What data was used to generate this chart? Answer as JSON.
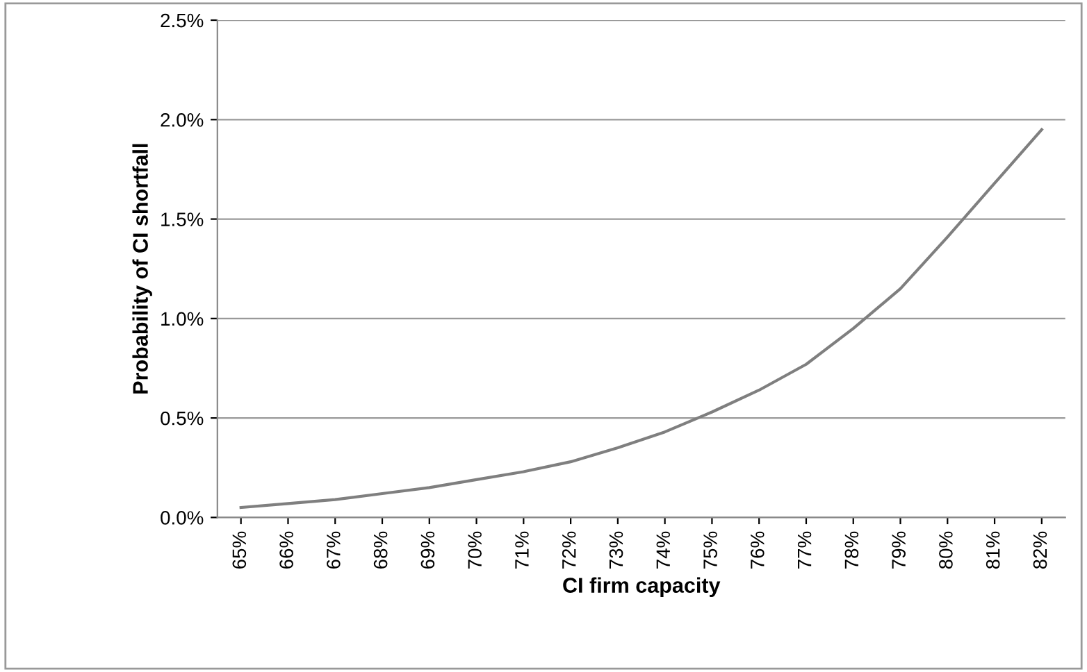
{
  "chart_data": {
    "type": "line",
    "xlabel": "CI firm capacity",
    "ylabel": "Probability of CI shortfall",
    "categories": [
      "65%",
      "66%",
      "67%",
      "68%",
      "69%",
      "70%",
      "71%",
      "72%",
      "73%",
      "74%",
      "75%",
      "76%",
      "77%",
      "78%",
      "79%",
      "80%",
      "81%",
      "82%"
    ],
    "series": [
      {
        "color": "#7f7f7f",
        "values": [
          0.05,
          0.07,
          0.09,
          0.12,
          0.15,
          0.19,
          0.23,
          0.28,
          0.35,
          0.43,
          0.53,
          0.64,
          0.77,
          0.95,
          1.15,
          1.41,
          1.68,
          1.95
        ]
      }
    ],
    "ylim": [
      0,
      2.5
    ],
    "yticks": [
      {
        "value": 0,
        "label": "0.0%"
      },
      {
        "value": 0.5,
        "label": "0.5%"
      },
      {
        "value": 1.0,
        "label": "1.0%"
      },
      {
        "value": 1.5,
        "label": "1.5%"
      },
      {
        "value": 2.0,
        "label": "2.0%"
      },
      {
        "value": 2.5,
        "label": "2.5%"
      }
    ],
    "grid": "y",
    "marker": "none",
    "line_style": "solid",
    "legend": false
  }
}
